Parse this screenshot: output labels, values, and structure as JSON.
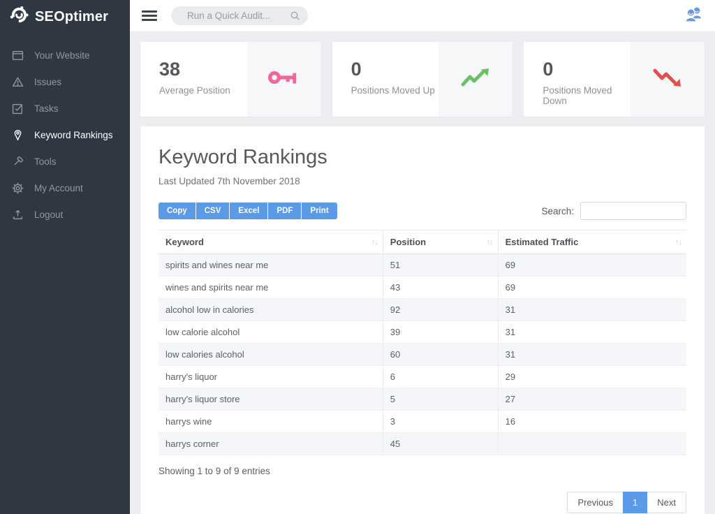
{
  "brand": {
    "name": "SEOptimer"
  },
  "sidebar": {
    "items": [
      {
        "id": "your-website",
        "label": "Your Website",
        "icon": "browser-icon",
        "active": false
      },
      {
        "id": "issues",
        "label": "Issues",
        "icon": "warning-icon",
        "active": false
      },
      {
        "id": "tasks",
        "label": "Tasks",
        "icon": "check-square-icon",
        "active": false
      },
      {
        "id": "keyword-rankings",
        "label": "Keyword Rankings",
        "icon": "pin-icon",
        "active": true
      },
      {
        "id": "tools",
        "label": "Tools",
        "icon": "hammer-icon",
        "active": false
      },
      {
        "id": "my-account",
        "label": "My Account",
        "icon": "gear-icon",
        "active": false
      },
      {
        "id": "logout",
        "label": "Logout",
        "icon": "logout-icon",
        "active": false
      }
    ]
  },
  "topbar": {
    "search_placeholder": "Run a Quick Audit...",
    "user_icon": "users-icon"
  },
  "stats": [
    {
      "value": "38",
      "label": "Average Position",
      "icon": "key-icon",
      "icon_color": "#f0679b"
    },
    {
      "value": "0",
      "label": "Positions Moved Up",
      "icon": "trend-up-icon",
      "icon_color": "#6abf69"
    },
    {
      "value": "0",
      "label": "Positions Moved Down",
      "icon": "trend-down-icon",
      "icon_color": "#e2504c"
    }
  ],
  "panel": {
    "title": "Keyword Rankings",
    "subtitle": "Last Updated 7th November 2018",
    "export_buttons": [
      "Copy",
      "CSV",
      "Excel",
      "PDF",
      "Print"
    ],
    "search_label": "Search:",
    "search_value": "",
    "table": {
      "columns": [
        "Keyword",
        "Position",
        "Estimated Traffic"
      ],
      "col_widths": [
        "42.5%",
        "21.8%",
        "35.7%"
      ],
      "rows": [
        [
          "spirits and wines near me",
          "51",
          "69"
        ],
        [
          "wines and spirits near me",
          "43",
          "69"
        ],
        [
          "alcohol low in calories",
          "92",
          "31"
        ],
        [
          "low calorie alcohol",
          "39",
          "31"
        ],
        [
          "low calories alcohol",
          "60",
          "31"
        ],
        [
          "harry's liquor",
          "6",
          "29"
        ],
        [
          "harry's liquor store",
          "5",
          "27"
        ],
        [
          "harrys wine",
          "3",
          "16"
        ],
        [
          "harrys corner",
          "45",
          ""
        ]
      ]
    },
    "summary": "Showing 1 to 9 of 9 entries",
    "pagination": {
      "previous": "Previous",
      "current": "1",
      "next": "Next"
    }
  },
  "colors": {
    "accent_blue": "#5b9ae6",
    "sidebar_bg": "#2e3742",
    "pink": "#f0679b",
    "green": "#6abf69",
    "red": "#e2504c"
  }
}
